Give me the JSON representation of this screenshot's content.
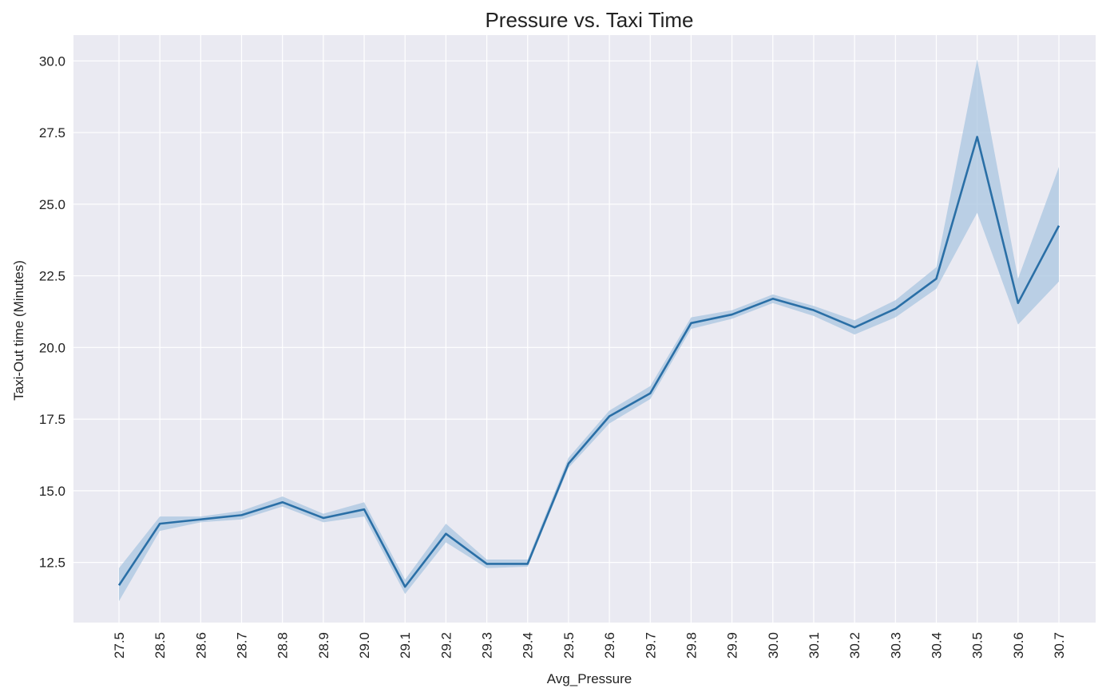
{
  "chart_data": {
    "type": "line",
    "title": "Pressure vs. Taxi Time",
    "xlabel": "Avg_Pressure",
    "ylabel": "Taxi-Out time (Minutes)",
    "categories": [
      "27.5",
      "28.5",
      "28.6",
      "28.7",
      "28.8",
      "28.9",
      "29.0",
      "29.1",
      "29.2",
      "29.3",
      "29.4",
      "29.5",
      "29.6",
      "29.7",
      "29.8",
      "29.9",
      "30.0",
      "30.1",
      "30.2",
      "30.3",
      "30.4",
      "30.5",
      "30.6",
      "30.7"
    ],
    "series": [
      {
        "values": [
          11.7,
          13.85,
          14.0,
          14.15,
          14.6,
          14.05,
          14.35,
          11.65,
          13.5,
          12.45,
          12.45,
          15.95,
          17.6,
          18.4,
          20.85,
          21.15,
          21.7,
          21.3,
          20.7,
          21.35,
          22.4,
          27.35,
          21.55,
          24.25
        ],
        "ci_lower": [
          11.15,
          13.6,
          13.9,
          14.0,
          14.45,
          13.9,
          14.1,
          11.4,
          13.2,
          12.3,
          12.35,
          15.8,
          17.35,
          18.2,
          20.65,
          21.0,
          21.55,
          21.1,
          20.45,
          21.05,
          22.05,
          24.7,
          20.8,
          22.3
        ],
        "ci_upper": [
          12.3,
          14.1,
          14.1,
          14.3,
          14.8,
          14.2,
          14.6,
          11.9,
          13.85,
          12.6,
          12.6,
          16.15,
          17.8,
          18.65,
          21.05,
          21.3,
          21.85,
          21.45,
          20.95,
          21.65,
          22.8,
          30.05,
          22.4,
          26.3
        ]
      }
    ],
    "yticks": [
      "12.5",
      "15.0",
      "17.5",
      "20.0",
      "22.5",
      "25.0",
      "27.5",
      "30.0"
    ],
    "ytick_values": [
      12.5,
      15.0,
      17.5,
      20.0,
      22.5,
      25.0,
      27.5,
      30.0
    ],
    "ylim": [
      10.4,
      30.9
    ],
    "grid": true,
    "colors": {
      "background": "#eaeaf2",
      "grid": "#ffffff",
      "line": "#2a6fa6",
      "band": "#a9c6e0"
    }
  }
}
